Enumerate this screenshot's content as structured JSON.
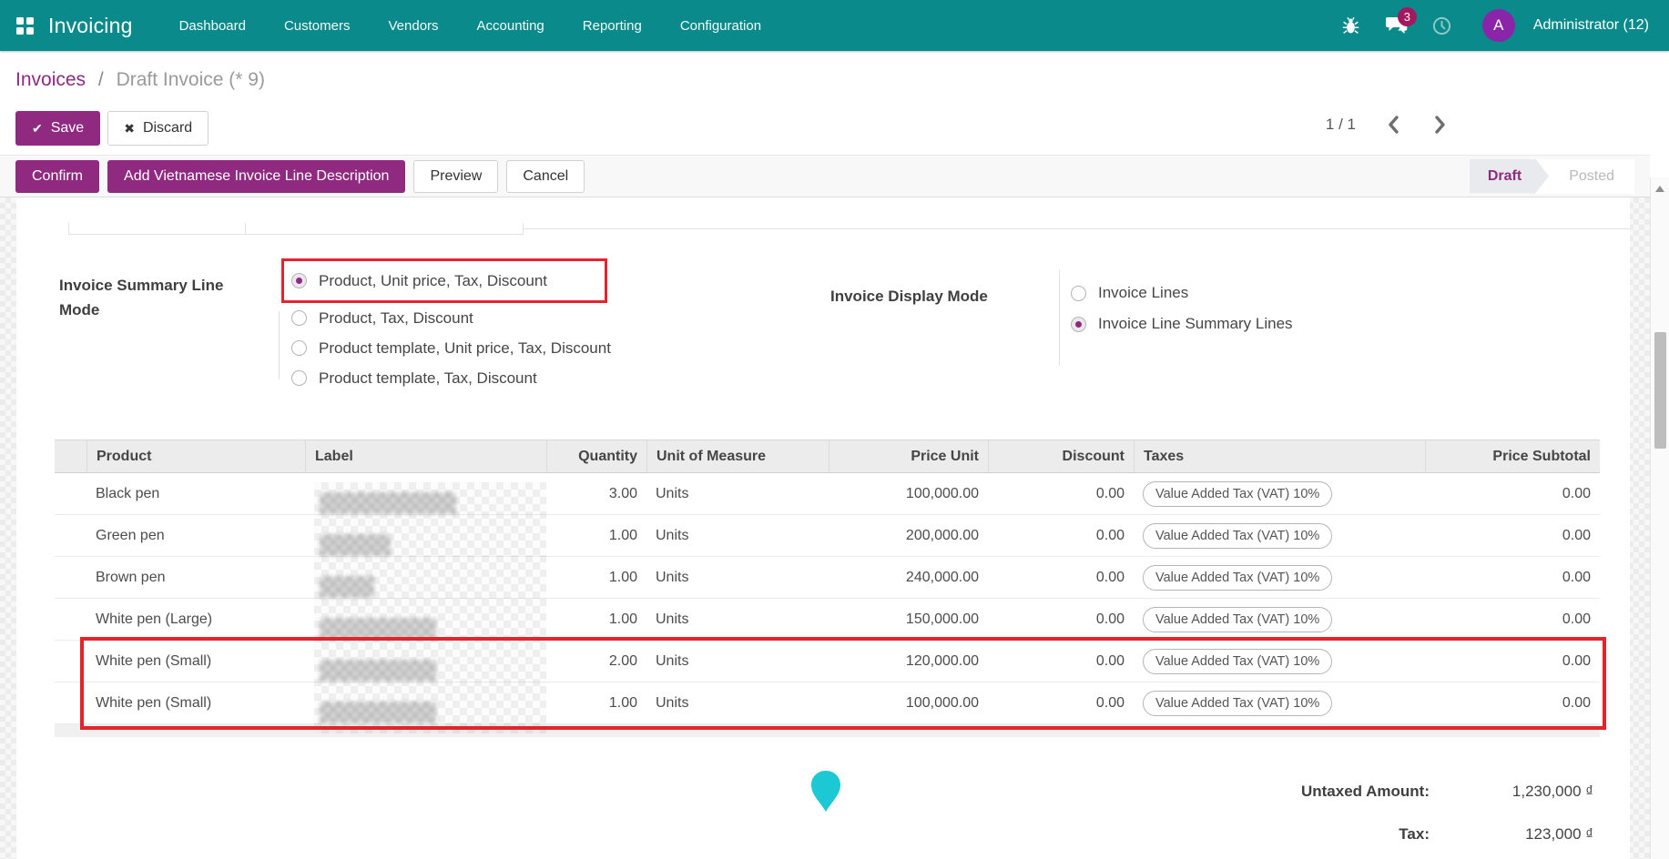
{
  "colors": {
    "teal": "#0a8a8a",
    "purple": "#8f2a80",
    "red": "#e3242a",
    "cyan": "#1bc8d4",
    "badge": "#a3195f",
    "avatar": "#8a24a8"
  },
  "navbar": {
    "app_name": "Invoicing",
    "menu_items": [
      "Dashboard",
      "Customers",
      "Vendors",
      "Accounting",
      "Reporting",
      "Configuration"
    ],
    "message_count": "3",
    "user_initial": "A",
    "user_name": "Administrator (12)"
  },
  "breadcrumb": {
    "parent": "Invoices",
    "separator": "/",
    "current": "Draft Invoice (* 9)"
  },
  "control_panel": {
    "save": "Save",
    "discard": "Discard",
    "pager": "1 / 1"
  },
  "action_bar": {
    "confirm": "Confirm",
    "add_description": "Add Vietnamese Invoice Line Description",
    "preview": "Preview",
    "cancel": "Cancel",
    "states": [
      {
        "label": "Draft",
        "active": true
      },
      {
        "label": "Posted",
        "active": false
      }
    ]
  },
  "form": {
    "groups": [
      {
        "id": "invoice-summary-line-mode",
        "label": "Invoice Summary Line Mode",
        "options": [
          {
            "label": "Product, Unit price, Tax, Discount",
            "selected": true,
            "highlighted": true
          },
          {
            "label": "Product, Tax, Discount",
            "selected": false,
            "highlighted": false
          },
          {
            "label": "Product template, Unit price, Tax, Discount",
            "selected": false,
            "highlighted": false
          },
          {
            "label": "Product template, Tax, Discount",
            "selected": false,
            "highlighted": false
          }
        ]
      },
      {
        "id": "invoice-display-mode",
        "label": "Invoice Display Mode",
        "options": [
          {
            "label": "Invoice Lines",
            "selected": false,
            "highlighted": false
          },
          {
            "label": "Invoice Line Summary Lines",
            "selected": true,
            "highlighted": false
          }
        ]
      }
    ]
  },
  "lines_table": {
    "columns": [
      "Product",
      "Label",
      "Quantity",
      "Unit of Measure",
      "Price Unit",
      "Discount",
      "Taxes",
      "Price Subtotal"
    ],
    "rows": [
      {
        "product": "Black pen",
        "label_redacted": true,
        "label_blur": 150,
        "quantity": "3.00",
        "uom": "Units",
        "price_unit": "100,000.00",
        "discount": "0.00",
        "taxes": "Value Added Tax (VAT) 10%",
        "subtotal": "0.00",
        "highlighted": false
      },
      {
        "product": "Green pen",
        "label_redacted": true,
        "label_blur": 78,
        "quantity": "1.00",
        "uom": "Units",
        "price_unit": "200,000.00",
        "discount": "0.00",
        "taxes": "Value Added Tax (VAT) 10%",
        "subtotal": "0.00",
        "highlighted": false
      },
      {
        "product": "Brown pen",
        "label_redacted": true,
        "label_blur": 60,
        "quantity": "1.00",
        "uom": "Units",
        "price_unit": "240,000.00",
        "discount": "0.00",
        "taxes": "Value Added Tax (VAT) 10%",
        "subtotal": "0.00",
        "highlighted": false
      },
      {
        "product": "White pen (Large)",
        "label_redacted": true,
        "label_blur": 128,
        "quantity": "1.00",
        "uom": "Units",
        "price_unit": "150,000.00",
        "discount": "0.00",
        "taxes": "Value Added Tax (VAT) 10%",
        "subtotal": "0.00",
        "highlighted": false
      },
      {
        "product": "White pen (Small)",
        "label_redacted": true,
        "label_blur": 128,
        "quantity": "2.00",
        "uom": "Units",
        "price_unit": "120,000.00",
        "discount": "0.00",
        "taxes": "Value Added Tax (VAT) 10%",
        "subtotal": "0.00",
        "highlighted": true
      },
      {
        "product": "White pen (Small)",
        "label_redacted": true,
        "label_blur": 128,
        "quantity": "1.00",
        "uom": "Units",
        "price_unit": "100,000.00",
        "discount": "0.00",
        "taxes": "Value Added Tax (VAT) 10%",
        "subtotal": "0.00",
        "highlighted": true
      }
    ]
  },
  "totals": {
    "untaxed_label": "Untaxed Amount:",
    "untaxed_value": "1,230,000 ₫",
    "tax_label": "Tax:",
    "tax_value": "123,000 ₫"
  }
}
